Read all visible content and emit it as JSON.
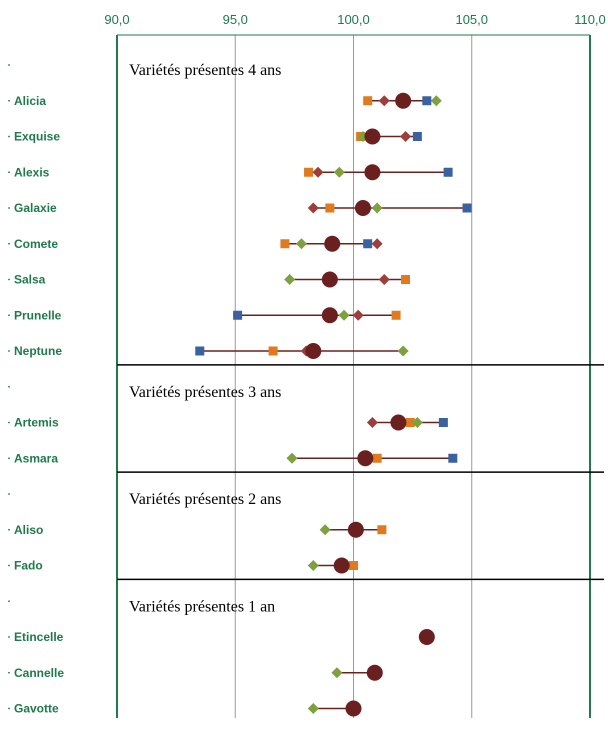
{
  "chart_data": {
    "type": "scatter",
    "xlim": [
      90,
      110
    ],
    "x_ticks": [
      "90,0",
      "95,0",
      "100,0",
      "105,0",
      "110,0"
    ],
    "x_tick_values": [
      90,
      95,
      100,
      105,
      110
    ],
    "grid": true,
    "colors": {
      "blue": "#3a62a0",
      "red": "#9c3f3c",
      "green": "#7ea13f",
      "orange": "#e07a1f",
      "mean": "#6b2020",
      "axis": "#1f7a4d",
      "label": "#1f7a4d"
    },
    "sections": [
      {
        "label": "Variétés présentes 4 ans",
        "rows": [
          {
            "name": "Alicia",
            "mean": 102.1,
            "points": {
              "blue": 103.1,
              "red": 101.3,
              "green": 103.5,
              "orange": 100.6
            }
          },
          {
            "name": "Exquise",
            "mean": 100.8,
            "points": {
              "blue": 102.7,
              "red": 102.2,
              "green": 100.4,
              "orange": 100.3
            }
          },
          {
            "name": "Alexis",
            "mean": 100.8,
            "points": {
              "blue": 104.0,
              "red": 98.5,
              "green": 99.4,
              "orange": 98.1
            }
          },
          {
            "name": "Galaxie",
            "mean": 100.4,
            "points": {
              "blue": 104.8,
              "red": 98.3,
              "green": 101.0,
              "orange": 99.0
            }
          },
          {
            "name": "Comete",
            "mean": 99.1,
            "points": {
              "blue": 100.6,
              "red": 101.0,
              "green": 97.8,
              "orange": 97.1
            }
          },
          {
            "name": "Salsa",
            "mean": 99.0,
            "points": {
              "blue": 98.9,
              "red": 101.3,
              "green": 97.3,
              "orange": 102.2
            }
          },
          {
            "name": "Prunelle",
            "mean": 99.0,
            "points": {
              "blue": 95.1,
              "red": 100.2,
              "green": 99.6,
              "orange": 101.8
            }
          },
          {
            "name": "Neptune",
            "mean": 98.3,
            "points": {
              "blue": 93.5,
              "red": 98.0,
              "green": 102.1,
              "orange": 96.6
            }
          }
        ]
      },
      {
        "label": "Variétés présentes 3 ans",
        "rows": [
          {
            "name": "Artemis",
            "mean": 101.9,
            "points": {
              "blue": 103.8,
              "red": 100.8,
              "green": 102.7,
              "orange": 102.4
            }
          },
          {
            "name": "Asmara",
            "mean": 100.5,
            "points": {
              "blue": 104.2,
              "green": 97.4,
              "orange": 101.0
            }
          }
        ]
      },
      {
        "label": "Variétés présentes 2 ans",
        "rows": [
          {
            "name": "Aliso",
            "mean": 100.1,
            "points": {
              "green": 98.8,
              "orange": 101.2
            }
          },
          {
            "name": "Fado",
            "mean": 99.5,
            "points": {
              "green": 98.3,
              "orange": 100.0
            }
          }
        ]
      },
      {
        "label": "Variétés présentes 1 an",
        "rows": [
          {
            "name": "Etincelle",
            "mean": 103.1,
            "points": {}
          },
          {
            "name": "Cannelle",
            "mean": 100.9,
            "points": {
              "green": 99.3
            }
          },
          {
            "name": "Gavotte",
            "mean": 100.0,
            "points": {
              "green": 98.3
            }
          }
        ]
      }
    ]
  }
}
